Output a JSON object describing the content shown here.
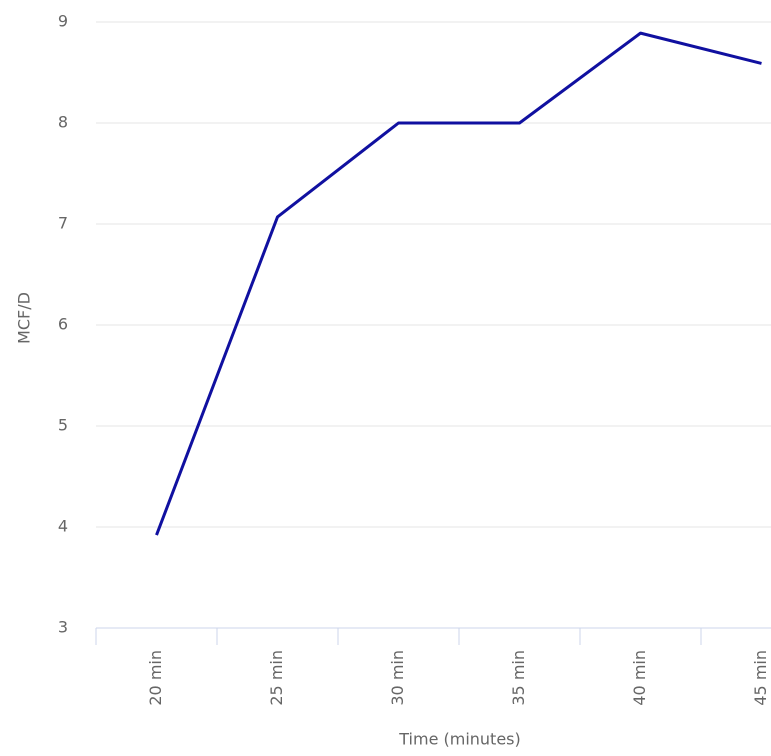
{
  "chart_data": {
    "type": "line",
    "x_label": "Time (minutes)",
    "y_label": "MCF/D",
    "categories": [
      "20 min",
      "25 min",
      "30 min",
      "35 min",
      "40 min",
      "45 min"
    ],
    "series": [
      {
        "name": "MCF/D",
        "color": "#1010a0",
        "values": [
          3.92,
          7.07,
          8.0,
          8.0,
          8.89,
          8.59
        ]
      }
    ],
    "ylim": [
      3,
      9
    ],
    "yticks": [
      3,
      4,
      5,
      6,
      7,
      8,
      9
    ],
    "grid": true
  }
}
